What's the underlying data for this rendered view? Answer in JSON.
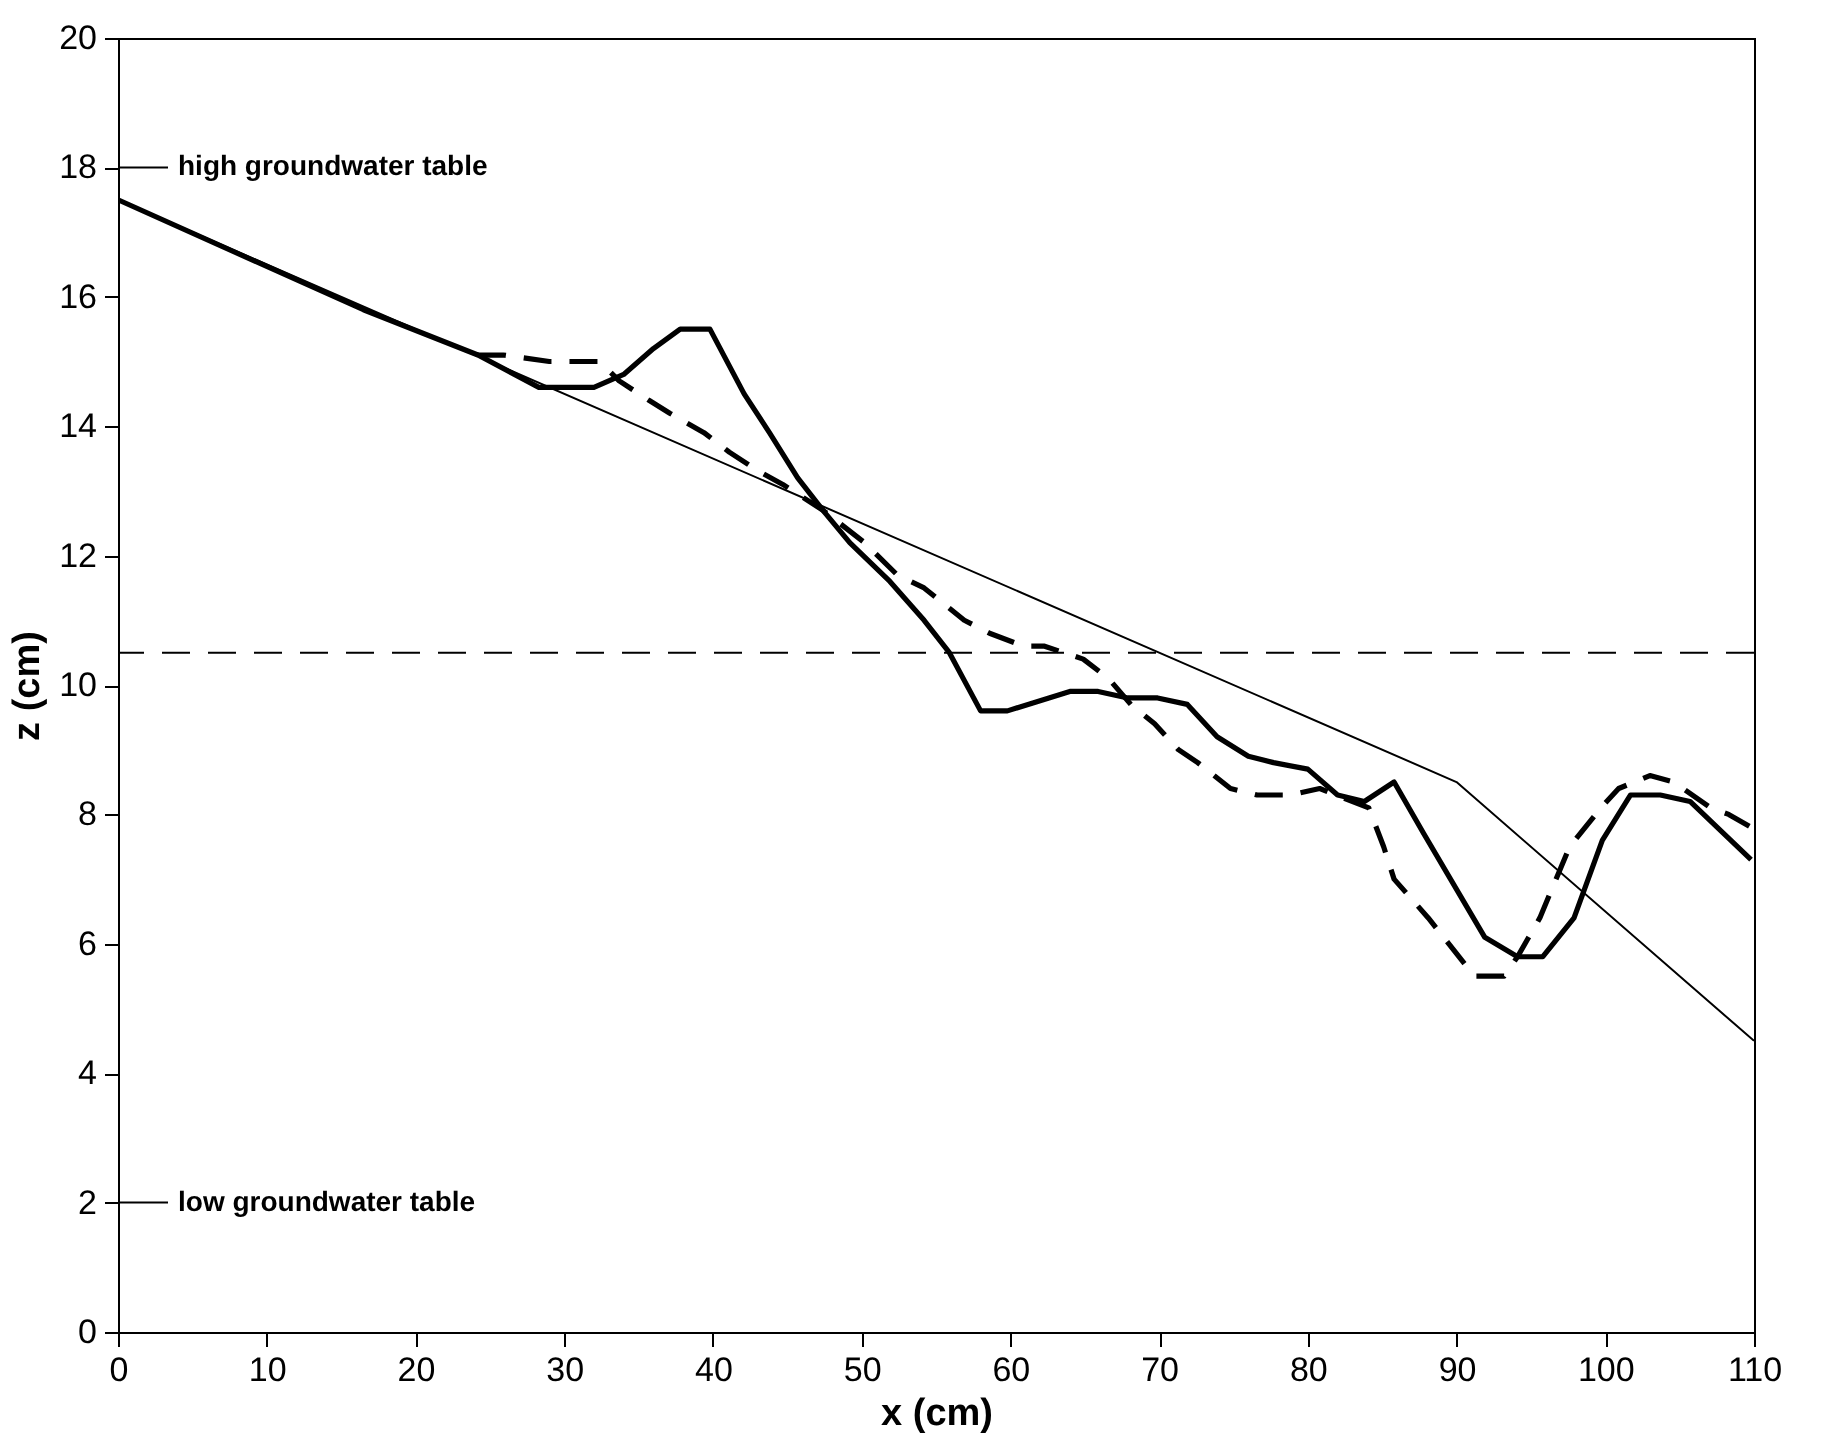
{
  "chart_data": {
    "type": "line",
    "xlabel": "x (cm)",
    "ylabel": "z (cm)",
    "xlim": [
      0,
      110
    ],
    "xticks": [
      0,
      10,
      20,
      30,
      40,
      50,
      60,
      70,
      80,
      90,
      100,
      110
    ],
    "ylim": [
      0,
      20
    ],
    "yticks": [
      0,
      2,
      4,
      6,
      8,
      10,
      12,
      14,
      16,
      18,
      20
    ],
    "grid": false,
    "series": [
      {
        "color": "#000000",
        "line_style": "solid",
        "x": [
          0,
          16.5,
          24.2,
          28.3,
          29.9,
          32.0,
          34.0,
          36.0,
          37.8,
          39.8,
          42.1,
          43.8,
          45.7,
          47.4,
          49.2,
          51.9,
          54.2,
          55.9,
          58.0,
          59.8,
          64.0,
          65.9,
          67.9,
          69.9,
          71.9,
          73.9,
          76.0,
          77.7,
          80.0,
          82.0,
          83.8,
          85.8,
          87.8,
          91.9,
          94.1,
          95.8,
          97.9,
          99.8,
          101.7,
          103.7,
          105.7,
          109.8
        ],
        "values": [
          17.5,
          15.8,
          15.1,
          14.6,
          14.6,
          14.6,
          14.8,
          15.2,
          15.5,
          15.5,
          14.5,
          13.9,
          13.2,
          12.7,
          12.2,
          11.6,
          11.0,
          10.5,
          9.6,
          9.6,
          9.9,
          9.9,
          9.8,
          9.8,
          9.7,
          9.2,
          8.9,
          8.8,
          8.7,
          8.3,
          8.2,
          8.5,
          7.7,
          6.1,
          5.8,
          5.8,
          6.4,
          7.6,
          8.3,
          8.3,
          8.2,
          7.3
        ]
      },
      {
        "color": "#000000",
        "line_style": "dashed",
        "x": [
          24.2,
          25.9,
          29.0,
          32.4,
          33.7,
          35.7,
          37.1,
          39.4,
          41.1,
          43.1,
          44.7,
          47.4,
          50.2,
          52.4,
          54.2,
          56.9,
          58.6,
          60.9,
          62.3,
          64.9,
          66.6,
          68.1,
          69.7,
          71.3,
          72.6,
          74.8,
          76.6,
          78.8,
          80.8,
          84.1,
          85.1,
          85.8,
          88.1,
          91.2,
          93.2,
          94.1,
          95.6,
          97.6,
          99.7,
          100.9,
          103.0,
          104.6,
          107.1,
          108.3,
          109.8
        ],
        "values": [
          15.1,
          15.1,
          15.0,
          15.0,
          14.7,
          14.4,
          14.2,
          13.9,
          13.6,
          13.3,
          13.1,
          12.7,
          12.2,
          11.7,
          11.5,
          11.0,
          10.8,
          10.6,
          10.6,
          10.4,
          10.1,
          9.7,
          9.4,
          9.0,
          8.8,
          8.4,
          8.3,
          8.3,
          8.4,
          8.1,
          7.5,
          7.0,
          6.4,
          5.5,
          5.5,
          5.8,
          6.4,
          7.5,
          8.1,
          8.4,
          8.6,
          8.5,
          8.1,
          8.0,
          7.8
        ]
      },
      {
        "color": "#000000",
        "line_style": "solid",
        "x": [
          0,
          90,
          110
        ],
        "values": [
          17.5,
          8.5,
          4.5
        ]
      }
    ],
    "ref_lines": [
      {
        "axis": "y",
        "value": 10.5,
        "line_style": "dashed",
        "color": "#000000"
      },
      {
        "axis": "y",
        "value": 18,
        "label": "high groundwater table",
        "color": "#000000"
      },
      {
        "axis": "y",
        "value": 2,
        "label": "low groundwater table",
        "color": "#000000"
      }
    ]
  }
}
